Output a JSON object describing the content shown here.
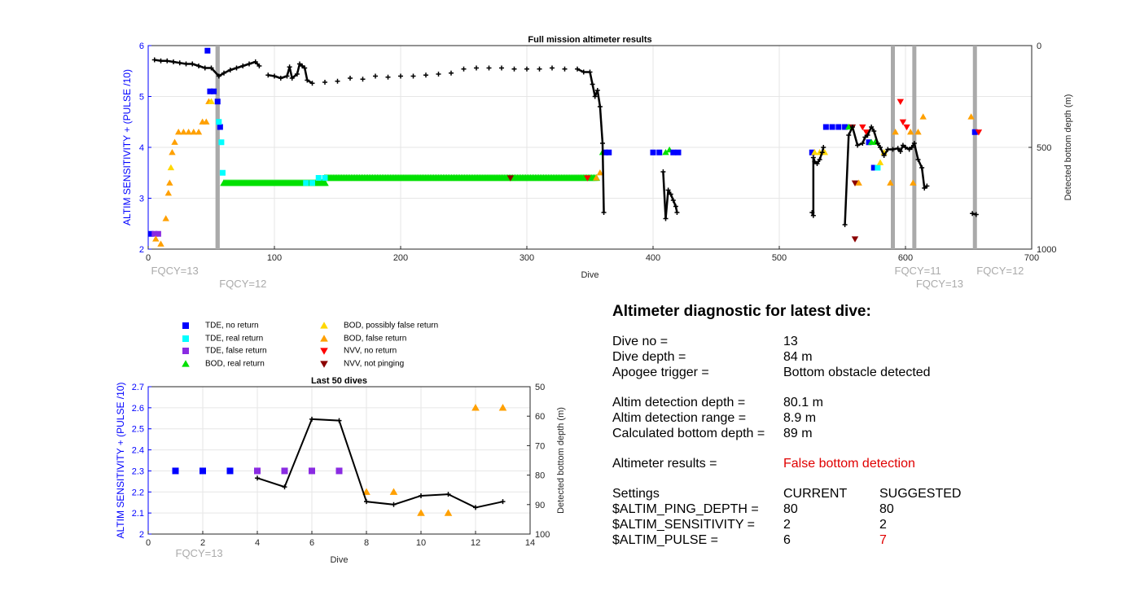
{
  "colors": {
    "tde_no": "#0000ff",
    "tde_real": "#00ffff",
    "tde_false": "#8a2be2",
    "bod_real": "#00e000",
    "bod_possibly": "#ffd700",
    "bod_false": "#ffa000",
    "nvv_no": "#ff0000",
    "nvv_notping": "#8b0000",
    "depth": "#000000",
    "fqcy": "#aaaaaa",
    "axis_left": "#0000ff"
  },
  "legend": [
    {
      "label": "TDE, no return",
      "marker": "square",
      "color": "#0000ff"
    },
    {
      "label": "TDE, real return",
      "marker": "square",
      "color": "#00ffff"
    },
    {
      "label": "TDE, false return",
      "marker": "square",
      "color": "#8a2be2"
    },
    {
      "label": "BOD, real return",
      "marker": "triangle-up",
      "color": "#00e000"
    },
    {
      "label": "BOD, possibly false return",
      "marker": "triangle-up",
      "color": "#ffd700"
    },
    {
      "label": "BOD, false return",
      "marker": "triangle-up",
      "color": "#ffa000"
    },
    {
      "label": "NVV, no return",
      "marker": "triangle-down",
      "color": "#ff0000"
    },
    {
      "label": "NVV, not pinging",
      "marker": "triangle-down",
      "color": "#8b0000"
    }
  ],
  "chart_data": [
    {
      "type": "scatter",
      "title": "Full mission altimeter results",
      "xlabel": "Dive",
      "ylabel": "ALTIM SENSITIVITY + (PULSE /10)",
      "y2label": "Detected bottom depth (m)",
      "xlim": [
        0,
        700
      ],
      "ylim": [
        2,
        6
      ],
      "y2lim": [
        1000,
        0
      ],
      "xticks": [
        0,
        100,
        200,
        300,
        400,
        500,
        600,
        700
      ],
      "yticks": [
        2,
        3,
        4,
        5,
        6
      ],
      "y2ticks": [
        0,
        500,
        1000
      ],
      "fqcy": [
        {
          "x": 55,
          "label": "FQCY=13",
          "label_at": 1,
          "row": 0
        },
        {
          "x": 55,
          "label": "FQCY=12",
          "label_at": 55,
          "row": 1
        },
        {
          "x": 590,
          "label": "FQCY=11",
          "label_at": 590,
          "row": 0
        },
        {
          "x": 607,
          "label": "FQCY=13",
          "label_at": 607,
          "row": 1
        },
        {
          "x": 655,
          "label": "FQCY=12",
          "label_at": 655,
          "row": 0
        }
      ],
      "sensitivity_points": [
        {
          "x": 2,
          "y": 2.3,
          "c": "#0000ff",
          "m": "sq"
        },
        {
          "x": 5,
          "y": 2.3,
          "c": "#8a2be2",
          "m": "sq"
        },
        {
          "x": 8,
          "y": 2.3,
          "c": "#8a2be2",
          "m": "sq"
        },
        {
          "x": 6,
          "y": 2.2,
          "c": "#ffa000",
          "m": "up"
        },
        {
          "x": 10,
          "y": 2.1,
          "c": "#ffa000",
          "m": "up"
        },
        {
          "x": 14,
          "y": 2.6,
          "c": "#ffa000",
          "m": "up"
        },
        {
          "x": 16,
          "y": 3.1,
          "c": "#ffa000",
          "m": "up"
        },
        {
          "x": 17,
          "y": 3.3,
          "c": "#ffa000",
          "m": "up"
        },
        {
          "x": 18,
          "y": 3.6,
          "c": "#ffd700",
          "m": "up"
        },
        {
          "x": 19,
          "y": 3.9,
          "c": "#ffa000",
          "m": "up"
        },
        {
          "x": 21,
          "y": 4.1,
          "c": "#ffa000",
          "m": "up"
        },
        {
          "x": 24,
          "y": 4.3,
          "c": "#ffa000",
          "m": "up"
        },
        {
          "x": 28,
          "y": 4.3,
          "c": "#ffa000",
          "m": "up"
        },
        {
          "x": 32,
          "y": 4.3,
          "c": "#ffa000",
          "m": "up"
        },
        {
          "x": 36,
          "y": 4.3,
          "c": "#ffa000",
          "m": "up"
        },
        {
          "x": 40,
          "y": 4.3,
          "c": "#ffa000",
          "m": "up"
        },
        {
          "x": 43,
          "y": 4.5,
          "c": "#ffa000",
          "m": "up"
        },
        {
          "x": 46,
          "y": 4.5,
          "c": "#ffa000",
          "m": "up"
        },
        {
          "x": 48,
          "y": 4.9,
          "c": "#ffa000",
          "m": "up"
        },
        {
          "x": 50,
          "y": 4.9,
          "c": "#ffd700",
          "m": "up"
        },
        {
          "x": 47,
          "y": 5.9,
          "c": "#0000ff",
          "m": "sq"
        },
        {
          "x": 49,
          "y": 5.1,
          "c": "#0000ff",
          "m": "sq"
        },
        {
          "x": 52,
          "y": 5.1,
          "c": "#0000ff",
          "m": "sq"
        },
        {
          "x": 55,
          "y": 4.9,
          "c": "#0000ff",
          "m": "sq"
        },
        {
          "x": 57,
          "y": 4.4,
          "c": "#0000ff",
          "m": "sq"
        },
        {
          "x": 56,
          "y": 4.5,
          "c": "#00ffff",
          "m": "sq"
        },
        {
          "x": 58,
          "y": 4.1,
          "c": "#00ffff",
          "m": "sq"
        },
        {
          "x": 59,
          "y": 3.5,
          "c": "#00ffff",
          "m": "sq"
        },
        {
          "x": 125,
          "y": 3.3,
          "c": "#00ffff",
          "m": "sq"
        },
        {
          "x": 130,
          "y": 3.3,
          "c": "#00ffff",
          "m": "sq"
        },
        {
          "x": 135,
          "y": 3.4,
          "c": "#00ffff",
          "m": "sq"
        },
        {
          "x": 140,
          "y": 3.4,
          "c": "#00ffff",
          "m": "sq"
        },
        {
          "x": 287,
          "y": 3.4,
          "c": "#8b0000",
          "m": "dn"
        },
        {
          "x": 348,
          "y": 3.4,
          "c": "#ff0000",
          "m": "dn"
        },
        {
          "x": 355,
          "y": 3.4,
          "c": "#ffa000",
          "m": "up"
        },
        {
          "x": 358,
          "y": 3.5,
          "c": "#ffa000",
          "m": "up"
        },
        {
          "x": 360,
          "y": 3.9,
          "c": "#00e000",
          "m": "up"
        },
        {
          "x": 362,
          "y": 3.9,
          "c": "#0000ff",
          "m": "sq"
        },
        {
          "x": 365,
          "y": 3.9,
          "c": "#0000ff",
          "m": "sq"
        },
        {
          "x": 400,
          "y": 3.9,
          "c": "#0000ff",
          "m": "sq"
        },
        {
          "x": 405,
          "y": 3.9,
          "c": "#0000ff",
          "m": "sq"
        },
        {
          "x": 410,
          "y": 3.9,
          "c": "#00e000",
          "m": "up"
        },
        {
          "x": 413,
          "y": 3.95,
          "c": "#00e000",
          "m": "up"
        },
        {
          "x": 416,
          "y": 3.9,
          "c": "#0000ff",
          "m": "sq"
        },
        {
          "x": 420,
          "y": 3.9,
          "c": "#0000ff",
          "m": "sq"
        },
        {
          "x": 526,
          "y": 3.9,
          "c": "#0000ff",
          "m": "sq"
        },
        {
          "x": 528,
          "y": 3.9,
          "c": "#ffd700",
          "m": "up"
        },
        {
          "x": 532,
          "y": 3.9,
          "c": "#ffd700",
          "m": "up"
        },
        {
          "x": 536,
          "y": 3.9,
          "c": "#ffd700",
          "m": "up"
        },
        {
          "x": 537,
          "y": 4.4,
          "c": "#0000ff",
          "m": "sq"
        },
        {
          "x": 542,
          "y": 4.4,
          "c": "#0000ff",
          "m": "sq"
        },
        {
          "x": 547,
          "y": 4.4,
          "c": "#0000ff",
          "m": "sq"
        },
        {
          "x": 552,
          "y": 4.4,
          "c": "#0000ff",
          "m": "sq"
        },
        {
          "x": 555,
          "y": 4.4,
          "c": "#00e000",
          "m": "up"
        },
        {
          "x": 558,
          "y": 4.4,
          "c": "#8b0000",
          "m": "dn"
        },
        {
          "x": 566,
          "y": 4.4,
          "c": "#ff0000",
          "m": "dn"
        },
        {
          "x": 569,
          "y": 4.3,
          "c": "#ff0000",
          "m": "dn"
        },
        {
          "x": 571,
          "y": 4.1,
          "c": "#0000ff",
          "m": "sq"
        },
        {
          "x": 573,
          "y": 4.1,
          "c": "#00e000",
          "m": "up"
        },
        {
          "x": 576,
          "y": 4.1,
          "c": "#00e000",
          "m": "up"
        },
        {
          "x": 575,
          "y": 3.6,
          "c": "#0000ff",
          "m": "sq"
        },
        {
          "x": 578,
          "y": 3.6,
          "c": "#00ffff",
          "m": "sq"
        },
        {
          "x": 580,
          "y": 3.7,
          "c": "#ffd700",
          "m": "up"
        },
        {
          "x": 583,
          "y": 3.9,
          "c": "#ffd700",
          "m": "up"
        },
        {
          "x": 588,
          "y": 3.3,
          "c": "#ffa000",
          "m": "up"
        },
        {
          "x": 560,
          "y": 3.3,
          "c": "#8b0000",
          "m": "dn"
        },
        {
          "x": 563,
          "y": 3.3,
          "c": "#ffa000",
          "m": "up"
        },
        {
          "x": 560,
          "y": 2.2,
          "c": "#8b0000",
          "m": "dn"
        },
        {
          "x": 592,
          "y": 4.3,
          "c": "#ffa000",
          "m": "up"
        },
        {
          "x": 596,
          "y": 4.9,
          "c": "#ff0000",
          "m": "dn"
        },
        {
          "x": 598,
          "y": 4.5,
          "c": "#ff0000",
          "m": "dn"
        },
        {
          "x": 601,
          "y": 4.4,
          "c": "#ff0000",
          "m": "dn"
        },
        {
          "x": 604,
          "y": 4.3,
          "c": "#ffa000",
          "m": "up"
        },
        {
          "x": 606,
          "y": 3.3,
          "c": "#ffa000",
          "m": "up"
        },
        {
          "x": 610,
          "y": 4.3,
          "c": "#ffa000",
          "m": "up"
        },
        {
          "x": 614,
          "y": 4.6,
          "c": "#ffa000",
          "m": "up"
        },
        {
          "x": 652,
          "y": 4.6,
          "c": "#ffa000",
          "m": "up"
        },
        {
          "x": 655,
          "y": 4.3,
          "c": "#0000ff",
          "m": "sq"
        },
        {
          "x": 658,
          "y": 4.3,
          "c": "#ff0000",
          "m": "dn"
        }
      ],
      "sensitivity_bands": [
        {
          "x1": 60,
          "x2": 140,
          "y": 3.3,
          "c": "#00e000"
        },
        {
          "x1": 140,
          "x2": 355,
          "y": 3.4,
          "c": "#00e000"
        }
      ],
      "depth_points": [
        [
          5,
          70
        ],
        [
          10,
          75
        ],
        [
          15,
          75
        ],
        [
          20,
          80
        ],
        [
          25,
          85
        ],
        [
          30,
          90
        ],
        [
          35,
          90
        ],
        [
          40,
          100
        ],
        [
          45,
          110
        ],
        [
          50,
          110
        ],
        [
          56,
          150
        ],
        [
          60,
          135
        ],
        [
          65,
          120
        ],
        [
          70,
          110
        ],
        [
          75,
          100
        ],
        [
          80,
          90
        ],
        [
          85,
          80
        ],
        [
          88,
          100
        ],
        [
          95,
          145
        ],
        [
          100,
          150
        ],
        [
          105,
          160
        ],
        [
          110,
          150
        ],
        [
          112,
          105
        ],
        [
          114,
          160
        ],
        [
          118,
          140
        ],
        [
          120,
          90
        ],
        [
          122,
          100
        ],
        [
          124,
          110
        ],
        [
          126,
          170
        ],
        [
          130,
          185
        ],
        [
          140,
          180
        ],
        [
          150,
          175
        ],
        [
          160,
          160
        ],
        [
          170,
          165
        ],
        [
          180,
          150
        ],
        [
          190,
          155
        ],
        [
          200,
          150
        ],
        [
          210,
          150
        ],
        [
          220,
          145
        ],
        [
          230,
          140
        ],
        [
          240,
          135
        ],
        [
          250,
          115
        ],
        [
          260,
          110
        ],
        [
          270,
          110
        ],
        [
          280,
          110
        ],
        [
          290,
          115
        ],
        [
          300,
          115
        ],
        [
          310,
          115
        ],
        [
          320,
          110
        ],
        [
          330,
          115
        ],
        [
          340,
          115
        ],
        [
          345,
          130
        ],
        [
          350,
          130
        ],
        [
          352,
          190
        ],
        [
          354,
          250
        ],
        [
          356,
          220
        ],
        [
          358,
          300
        ],
        [
          360,
          480
        ],
        [
          361,
          820
        ],
        [
          408,
          620
        ],
        [
          410,
          850
        ],
        [
          412,
          710
        ],
        [
          414,
          730
        ],
        [
          416,
          760
        ],
        [
          418,
          790
        ],
        [
          419,
          820
        ],
        [
          526,
          820
        ],
        [
          527,
          835
        ],
        [
          527,
          550
        ],
        [
          528,
          570
        ],
        [
          530,
          580
        ],
        [
          532,
          560
        ],
        [
          534,
          525
        ],
        [
          535,
          500
        ],
        [
          552,
          880
        ],
        [
          555,
          440
        ],
        [
          558,
          400
        ],
        [
          562,
          490
        ],
        [
          566,
          480
        ],
        [
          568,
          450
        ],
        [
          570,
          440
        ],
        [
          573,
          400
        ],
        [
          575,
          420
        ],
        [
          578,
          480
        ],
        [
          580,
          500
        ],
        [
          583,
          540
        ],
        [
          586,
          510
        ],
        [
          590,
          510
        ],
        [
          594,
          505
        ],
        [
          596,
          520
        ],
        [
          598,
          490
        ],
        [
          600,
          500
        ],
        [
          603,
          510
        ],
        [
          605,
          500
        ],
        [
          607,
          480
        ],
        [
          610,
          560
        ],
        [
          613,
          600
        ],
        [
          615,
          700
        ],
        [
          617,
          690
        ],
        [
          653,
          825
        ],
        [
          656,
          830
        ]
      ]
    },
    {
      "type": "line",
      "title": "Last 50 dives",
      "xlabel": "Dive",
      "ylabel": "ALTIM SENSITIVITY + (PULSE /10)",
      "y2label": "Detected bottom depth (m)",
      "xlim": [
        0,
        14
      ],
      "ylim": [
        2,
        2.7
      ],
      "y2lim": [
        100,
        50
      ],
      "xticks": [
        0,
        2,
        4,
        6,
        8,
        10,
        12,
        14
      ],
      "yticks": [
        2.1,
        2.2,
        2.3,
        2.4,
        2.5,
        2.6,
        2.7
      ],
      "y2ticks": [
        50,
        60,
        70,
        80,
        90,
        100
      ],
      "fqcy": [
        {
          "x": 1,
          "label": "FQCY=13"
        }
      ],
      "sensitivity_points": [
        {
          "x": 1,
          "y": 2.3,
          "c": "#0000ff",
          "m": "sq"
        },
        {
          "x": 2,
          "y": 2.3,
          "c": "#0000ff",
          "m": "sq"
        },
        {
          "x": 3,
          "y": 2.3,
          "c": "#0000ff",
          "m": "sq"
        },
        {
          "x": 4,
          "y": 2.3,
          "c": "#8a2be2",
          "m": "sq"
        },
        {
          "x": 5,
          "y": 2.3,
          "c": "#8a2be2",
          "m": "sq"
        },
        {
          "x": 6,
          "y": 2.3,
          "c": "#8a2be2",
          "m": "sq"
        },
        {
          "x": 7,
          "y": 2.3,
          "c": "#8a2be2",
          "m": "sq"
        },
        {
          "x": 8,
          "y": 2.2,
          "c": "#ffa000",
          "m": "up"
        },
        {
          "x": 9,
          "y": 2.2,
          "c": "#ffa000",
          "m": "up"
        },
        {
          "x": 10,
          "y": 2.1,
          "c": "#ffa000",
          "m": "up"
        },
        {
          "x": 11,
          "y": 2.1,
          "c": "#ffa000",
          "m": "up"
        },
        {
          "x": 12,
          "y": 2.6,
          "c": "#ffa000",
          "m": "up"
        },
        {
          "x": 13,
          "y": 2.6,
          "c": "#ffa000",
          "m": "up"
        }
      ],
      "depth_points": [
        [
          4,
          81
        ],
        [
          5,
          84
        ],
        [
          6,
          61
        ],
        [
          7,
          61.5
        ],
        [
          8,
          89
        ],
        [
          9,
          90
        ],
        [
          10,
          87
        ],
        [
          11,
          86.5
        ],
        [
          12,
          91
        ],
        [
          13,
          89
        ]
      ]
    }
  ],
  "diagnostic": {
    "title": "Altimeter diagnostic for latest dive:",
    "dive_no_label": "Dive no =",
    "dive_no": "13",
    "dive_depth_label": "Dive depth =",
    "dive_depth": "84 m",
    "apogee_label": "Apogee trigger =",
    "apogee": "Bottom obstacle detected",
    "detection_depth_label": "Altim detection depth =",
    "detection_depth": "80.1 m",
    "detection_range_label": "Altim detection range =",
    "detection_range": "8.9 m",
    "bottom_depth_label": "Calculated bottom depth =",
    "bottom_depth": "89 m",
    "results_label": "Altimeter results =",
    "results": "False bottom detection",
    "settings_label": "Settings",
    "current_label": "CURRENT",
    "suggested_label": "SUGGESTED",
    "settings": [
      {
        "name": "$ALTIM_PING_DEPTH =",
        "current": "80",
        "suggested": "80",
        "changed": false
      },
      {
        "name": "$ALTIM_SENSITIVITY =",
        "current": "2",
        "suggested": "2",
        "changed": false
      },
      {
        "name": "$ALTIM_PULSE =",
        "current": "6",
        "suggested": "7",
        "changed": true
      }
    ]
  }
}
